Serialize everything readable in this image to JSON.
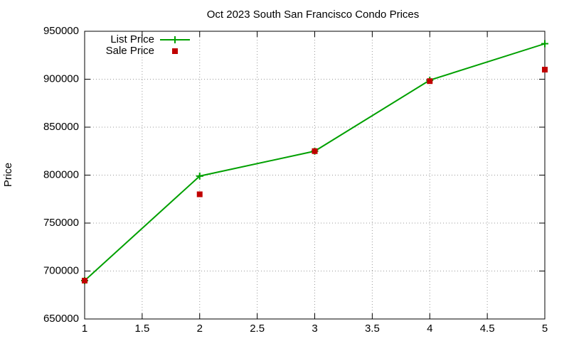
{
  "chart_data": {
    "type": "line",
    "title": "Oct 2023 South San Francisco Condo Prices",
    "y_label": "Price",
    "x": [
      1,
      2,
      3,
      4,
      5
    ],
    "series": [
      {
        "name": "List Price",
        "color": "#00a000",
        "marker": "plus",
        "line": true,
        "values": [
          690000,
          799000,
          825000,
          899000,
          937000
        ]
      },
      {
        "name": "Sale Price",
        "color": "#c00000",
        "marker": "square",
        "line": false,
        "values": [
          690000,
          780000,
          825000,
          898000,
          910000
        ]
      }
    ],
    "xlim": [
      1,
      5
    ],
    "xticks": [
      1,
      1.5,
      2,
      2.5,
      3,
      3.5,
      4,
      4.5,
      5
    ],
    "ylim": [
      650000,
      950000
    ],
    "yticks": [
      650000,
      700000,
      750000,
      800000,
      850000,
      900000,
      950000
    ],
    "grid": true,
    "legend": "top-left"
  }
}
